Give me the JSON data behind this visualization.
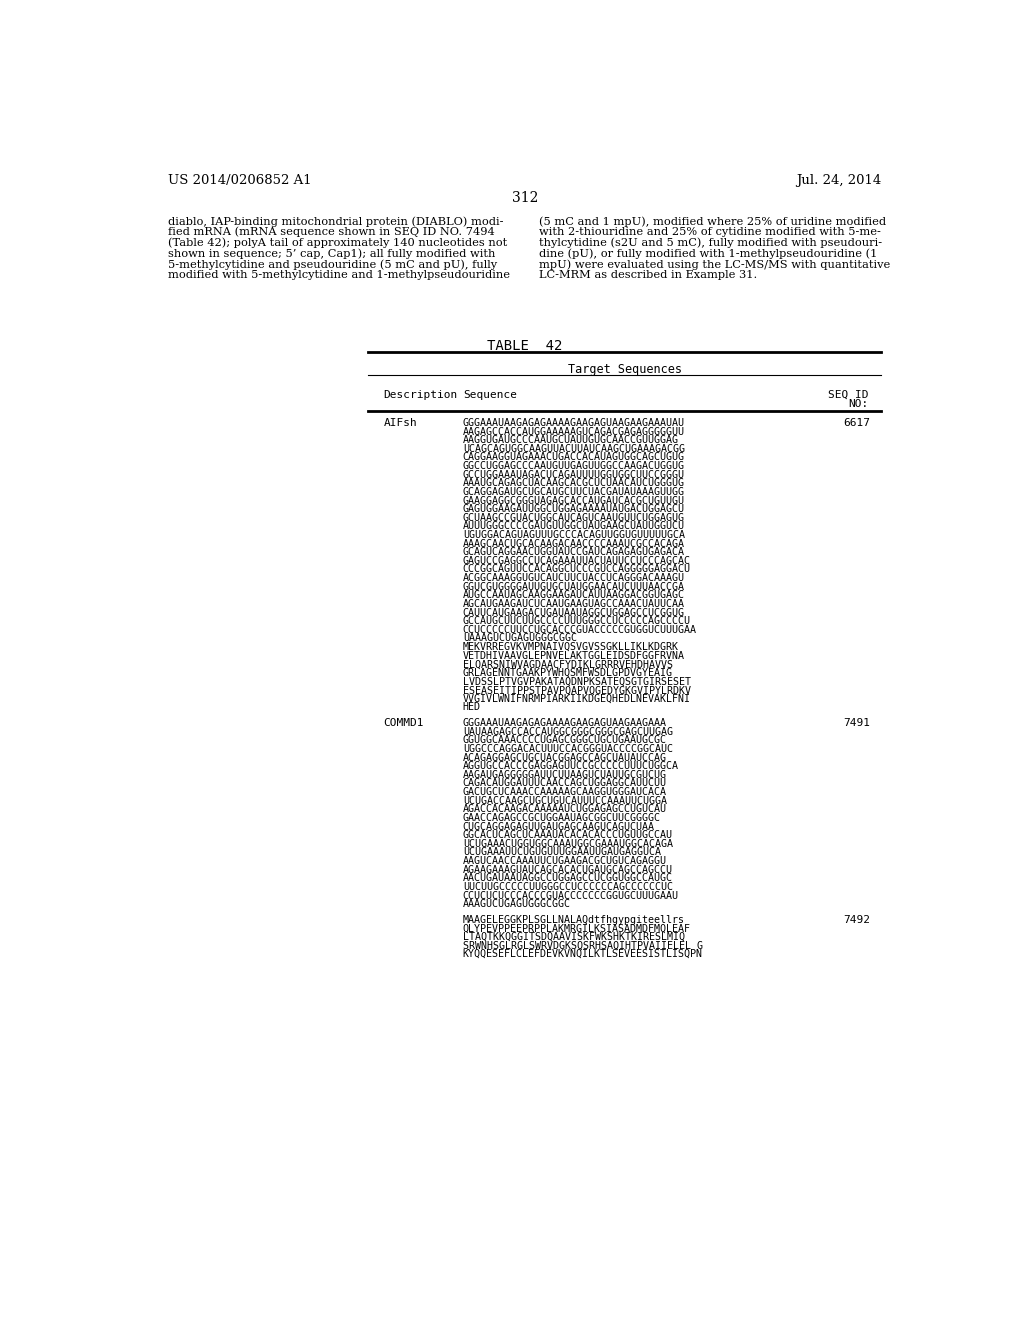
{
  "page_header_left": "US 2014/0206852 A1",
  "page_header_right": "Jul. 24, 2014",
  "page_number": "312",
  "body_left": "diablo, IAP-binding mitochondrial protein (DIABLO) modi-\nfied mRNA (mRNA sequence shown in SEQ ID NO. 7494\n(Table 42); polyA tail of approximately 140 nucleotides not\nshown in sequence; 5’ cap, Cap1); all fully modified with\n5-methylcytidine and pseudouridine (5 mC and pU), fully\nmodified with 5-methylcytidine and 1-methylpseudouridine",
  "body_right": "(5 mC and 1 mpU), modified where 25% of uridine modified\nwith 2-thiouridine and 25% of cytidine modified with 5-me-\nthylcytidine (s2U and 5 mC), fully modified with pseudouri-\ndine (pU), or fully modified with 1-methylpseudouridine (1\nmpU) were evaluated using the LC-MS/MS with quantitative\nLC-MRM as described in Example 31.",
  "table_title": "TABLE  42",
  "table_header_center": "Target Sequences",
  "col_desc": "Description",
  "col_seq": "Sequence",
  "col_seqid_line1": "SEQ ID",
  "col_seqid_line2": "NO:",
  "entries": [
    {
      "description": "AIFsh",
      "seq_id": "6617",
      "sequence_lines": [
        "GGGAAAUAAGAGAGAAAAGAAGAGUAAGAAGAAAUAU",
        "AAGAGCCACCAUGGAAAAAGUCAGACGAGAGGGGGUU",
        "AAGGUGAUGCCCAAUGCUAUUGUGCAACCGUUGGAG",
        "UCAGCAGUGGCAAGUUACUUAUCAAGCUGAAAGACGG",
        "CAGGAAGGUAGAAACUGACCACAUAGUGGCAGCUGUG",
        "GGCCUGGAGCCCAAUGUUGAGUUGGCCAAGACUGGUG",
        "GCCUGGAAAUAGACUCAGAUUUUGGUGGCUUCCGGGU",
        "AAAUGCAGAGCUACAAGCACGCUCUAACAUCUGGGUG",
        "GCAGGAGAUGCUGCAUGCUUCUACGAUAUAAAGUUGG",
        "GAAGGAGGCGGGUAGAGCACCAUGAUCACGCUGUUGU",
        "GAGUGGAAGAUUGGCUGGAGAAAAUAUGACUGGAGCU",
        "GCUAAGCCGUACUGGCAUCAGUCAAUGUUCUGGAGUG",
        "AUUUGGGCCCCGAUGUUGGCUAUGAAGCUAUUGGUCU",
        "UGUGGACAGUAGUUUGCCCACAGUUGGUGUUUUUGCA",
        "AAAGCAACUGCACAAGACAACCCCAAAUCGCCACAGA",
        "GCAGUCAGGAACUGGUAUCCGAUCAGAGAGUGAGACA",
        "GAGUCCGAGGCCUCAGAAAUUACUAUUCCUCCCAGCAC",
        "CCCGGCAGUUCCACAGGCUCCCGUCCAGGGGGAGGACU",
        "ACGGCAAAGGUGUCAUCUUCUACCUCAGGGACAAAGU",
        "GGUCGUGGGGAUUGUGCUAUGGAACAUCUUUAACCGA",
        "AUGCCAAUAGCAAGGAAGAUCAUUAAGGACGGUGAGC",
        "AGCAUGAAGAUCUCAAUGAAGUAGCCAAACUAUUCAA",
        "CAUUCAUGAAGACUGAUAAUAGGCUGGAGCCUCGGUG",
        "GCCAUGCUUCUUGCCCCUUUGGGCCUCCCCCAGCCCCU",
        "CCUCCCCCUUCCUGCACCCGUACCCCCGUGGUCUUUGAA",
        "UAAAGUCUGAGUGGGCGGC",
        "MEKVRREGVKVMPNAIVQSVGVSSGKLLIKLKDGRK",
        "VETDHIVAAVGLEPNVELAKTGGLEIDSDFGGFRVNA",
        "ELQARSNIWVAGDAACFYDIKLGRRRVEHDHAVVS",
        "GRLAGENNTGAAKPYWHQSMFWSDLGPDVGYEAIG",
        "LVDSSLPTVGVPAKATAQDNPKSATEQSGTGIRSESET",
        "ESEASEITIPPSTPAVPQAPVQGEDYGKGVIPYLRDKV",
        "VVGIVLWNIFNRMPIARKIIKDGEQHEDLNEVAKLFNI",
        "HED"
      ]
    },
    {
      "description": "COMMD1",
      "seq_id": "7491",
      "sequence_lines": [
        "GGGAAAUAAGAGAGAAAAGAAGAGUAAGAAGAAA",
        "UAUAAGAGCCACCAUGGCGGGCGGGCGAGCUUGAG",
        "GGUGGCAAACCCCUGAGCGGGCUGCUGAAUGCGC",
        "UGGCCCAGGACACUUUCCACGGGUACCCCGGCAUC",
        "ACAGAGGAGCUGCUACGGAGCCAGCUAUAUCCAG",
        "AGGUGCCACCCGAGGAGUUCCGCCCCCUUUCUGGCA",
        "AAGAUGAGGGGGAUUCUUAAGUCUAUUGCGUCUG",
        "CAGACAUGGAUUUCAACCAGCUGGAGGCAUUCUU",
        "GACUGCUCAAACCAAAAAGCAAGGUGGGAUCACA",
        "UCUGACCAAGCUGCUGUCAUUUCCAAAUUCUGGA",
        "AGACCACAAGACAAAAAUCUGGAGAGCCUGUCAU",
        "GAACCAGAGCCGCUGGAAUAGCGGCUUCGGGGC",
        "CUGCAGGAGAGUUGAUGAGCAAGUCAGUCUAA",
        "GGCACUCAGCUCAAAUACACACACCCUGUUGCCAU",
        "UCUGAAACUGGUGGCAAAUGGCGAAAUGGCACAGA",
        "UCUGAAAUUCUGUGUUUGGAAUUGAUGAGGUCA",
        "AAGUCAACCAAAUUCUGAAGACGCUGUCAGAGGU",
        "AGAAGAAAGUAUCAGCACACUGAUGCAGCCAGCCU",
        "AACUGAUAAUAGGCCUGGAGCCUCGGUGGCCAUGC",
        "UUCUUGCCCCCUUGGGCCUCCCCCCAGCCCCCCUC",
        "CCUCUCUCCCACCCGUACCCCCCCGGUGCUUUGAAU",
        "AAAGUCUGAGUGGGCGGC"
      ]
    },
    {
      "description": "",
      "seq_id": "7492",
      "sequence_lines": [
        "MAAGELEGGKPLSGLLNALAQdtfhgypgiteellrs",
        "QLYPEVPPEEPRPPLAKMRGILKSIASADMDFMQLEAF",
        "LTAQTKKQGGITSDQAAVISKFWKSHKTKIRESLMIQ",
        "SRWNHSGLRGLSWRVDGKSQSRHSAQIHTPVAIIELEL G",
        "KYQQESEFLCLEFDEVKVNQILKTLSEVEESISTLISQPN"
      ]
    }
  ]
}
